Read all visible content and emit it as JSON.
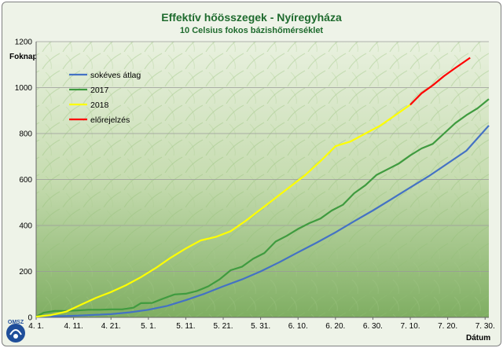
{
  "chart_data": {
    "type": "line",
    "title": "Effektív hőösszegek - Nyíregyháza",
    "subtitle": "10 Celsius fokos bázishőmérséklet",
    "ylabel": "Foknap",
    "xlabel": "Dátum",
    "ylim": [
      0,
      1200
    ],
    "yticks": [
      0,
      200,
      400,
      600,
      800,
      1000,
      1200
    ],
    "x_domain": [
      "04-01",
      "07-31"
    ],
    "xticks": [
      {
        "label": "4. 1.",
        "date": "04-01"
      },
      {
        "label": "4. 11.",
        "date": "04-11"
      },
      {
        "label": "4. 21.",
        "date": "04-21"
      },
      {
        "label": "5. 1.",
        "date": "05-01"
      },
      {
        "label": "5. 11.",
        "date": "05-11"
      },
      {
        "label": "5. 21.",
        "date": "05-21"
      },
      {
        "label": "5. 31.",
        "date": "05-31"
      },
      {
        "label": "6. 10.",
        "date": "06-10"
      },
      {
        "label": "6. 20.",
        "date": "06-20"
      },
      {
        "label": "6. 30.",
        "date": "06-30"
      },
      {
        "label": "7. 10.",
        "date": "07-10"
      },
      {
        "label": "7. 20.",
        "date": "07-20"
      },
      {
        "label": "7. 30.",
        "date": "07-30"
      }
    ],
    "grid": true,
    "legend_position": "top-left",
    "series": [
      {
        "name": "sokéves átlag",
        "color": "#4472c4",
        "points": [
          [
            "04-01",
            3
          ],
          [
            "04-11",
            7
          ],
          [
            "04-21",
            14
          ],
          [
            "04-26",
            22
          ],
          [
            "05-01",
            33
          ],
          [
            "05-06",
            50
          ],
          [
            "05-11",
            75
          ],
          [
            "05-16",
            103
          ],
          [
            "05-21",
            135
          ],
          [
            "05-26",
            165
          ],
          [
            "05-31",
            200
          ],
          [
            "06-05",
            240
          ],
          [
            "06-10",
            283
          ],
          [
            "06-15",
            325
          ],
          [
            "06-20",
            370
          ],
          [
            "06-25",
            418
          ],
          [
            "06-30",
            465
          ],
          [
            "07-05",
            515
          ],
          [
            "07-10",
            565
          ],
          [
            "07-15",
            615
          ],
          [
            "07-20",
            670
          ],
          [
            "07-25",
            725
          ],
          [
            "07-31",
            835
          ]
        ]
      },
      {
        "name": "2017",
        "color": "#3f9b3f",
        "points": [
          [
            "04-01",
            3
          ],
          [
            "04-03",
            20
          ],
          [
            "04-06",
            28
          ],
          [
            "04-09",
            28
          ],
          [
            "04-12",
            30
          ],
          [
            "04-15",
            33
          ],
          [
            "04-18",
            33
          ],
          [
            "04-21",
            35
          ],
          [
            "04-24",
            35
          ],
          [
            "04-27",
            42
          ],
          [
            "04-29",
            62
          ],
          [
            "05-02",
            63
          ],
          [
            "05-05",
            82
          ],
          [
            "05-08",
            100
          ],
          [
            "05-11",
            103
          ],
          [
            "05-14",
            115
          ],
          [
            "05-17",
            135
          ],
          [
            "05-20",
            165
          ],
          [
            "05-23",
            205
          ],
          [
            "05-26",
            220
          ],
          [
            "05-29",
            255
          ],
          [
            "06-01",
            280
          ],
          [
            "06-04",
            330
          ],
          [
            "06-07",
            355
          ],
          [
            "06-10",
            385
          ],
          [
            "06-13",
            410
          ],
          [
            "06-16",
            430
          ],
          [
            "06-19",
            465
          ],
          [
            "06-22",
            490
          ],
          [
            "06-25",
            540
          ],
          [
            "06-28",
            575
          ],
          [
            "07-01",
            620
          ],
          [
            "07-04",
            645
          ],
          [
            "07-07",
            670
          ],
          [
            "07-10",
            705
          ],
          [
            "07-13",
            735
          ],
          [
            "07-16",
            755
          ],
          [
            "07-19",
            800
          ],
          [
            "07-22",
            845
          ],
          [
            "07-25",
            880
          ],
          [
            "07-28",
            910
          ],
          [
            "07-31",
            950
          ]
        ]
      },
      {
        "name": "2018",
        "color": "#ffff00",
        "points": [
          [
            "04-01",
            3
          ],
          [
            "04-05",
            10
          ],
          [
            "04-09",
            25
          ],
          [
            "04-13",
            55
          ],
          [
            "04-17",
            85
          ],
          [
            "04-21",
            110
          ],
          [
            "04-25",
            140
          ],
          [
            "04-29",
            175
          ],
          [
            "05-03",
            215
          ],
          [
            "05-07",
            260
          ],
          [
            "05-11",
            300
          ],
          [
            "05-15",
            335
          ],
          [
            "05-19",
            350
          ],
          [
            "05-23",
            375
          ],
          [
            "05-27",
            420
          ],
          [
            "05-31",
            470
          ],
          [
            "06-04",
            520
          ],
          [
            "06-08",
            570
          ],
          [
            "06-12",
            620
          ],
          [
            "06-16",
            680
          ],
          [
            "06-20",
            745
          ],
          [
            "06-24",
            765
          ],
          [
            "06-28",
            800
          ],
          [
            "07-02",
            835
          ],
          [
            "07-06",
            880
          ],
          [
            "07-10",
            925
          ]
        ]
      },
      {
        "name": "előrejelzés",
        "color": "#ff0000",
        "points": [
          [
            "07-10",
            925
          ],
          [
            "07-13",
            975
          ],
          [
            "07-16",
            1010
          ],
          [
            "07-19",
            1050
          ],
          [
            "07-22",
            1085
          ],
          [
            "07-26",
            1130
          ]
        ]
      }
    ]
  },
  "logo": {
    "text": "OMSZ"
  }
}
